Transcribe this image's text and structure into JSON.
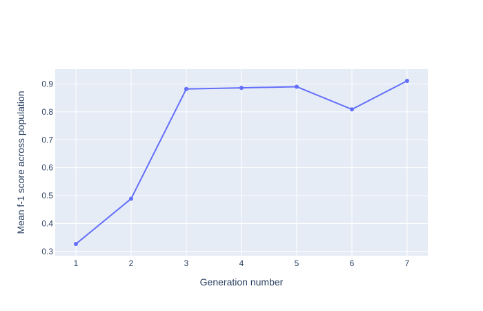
{
  "chart_data": {
    "type": "line",
    "title": "",
    "xlabel": "Generation number",
    "ylabel": "Mean f-1 score across population",
    "x": [
      1,
      2,
      3,
      4,
      5,
      6,
      7
    ],
    "series": [
      {
        "values": [
          0.327,
          0.489,
          0.882,
          0.886,
          0.89,
          0.809,
          0.911
        ]
      }
    ],
    "xlim": [
      0.625,
      7.375
    ],
    "ylim": [
      0.285,
      0.953
    ],
    "xticks": [
      1,
      2,
      3,
      4,
      5,
      6,
      7
    ],
    "yticks": [
      0.3,
      0.4,
      0.5,
      0.6,
      0.7,
      0.8,
      0.9
    ],
    "grid": true,
    "legend": "none",
    "colors": {
      "line": "#636efa",
      "plot_bg": "#e5ecf6",
      "grid": "#ffffff",
      "text": "#2a3f5f"
    }
  }
}
